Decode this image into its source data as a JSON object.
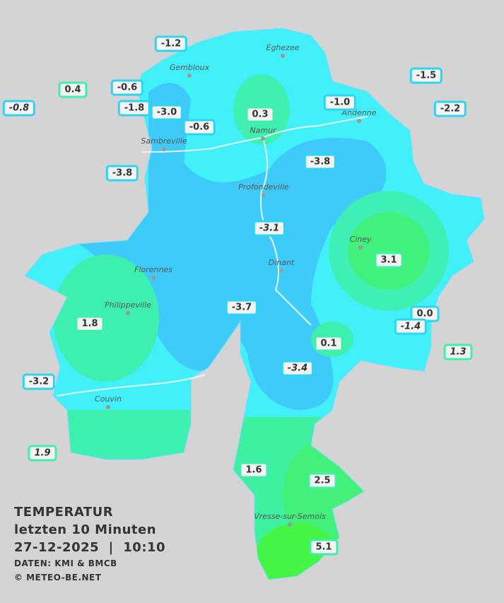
{
  "stations": [
    {
      "label": "-1.2",
      "style": "cyan"
    },
    {
      "label": "0.4",
      "style": "green"
    },
    {
      "label": "-0.6",
      "style": "cyan"
    },
    {
      "label": "-0.8",
      "style": "cyan italic"
    },
    {
      "label": "-1.8",
      "style": "cyan"
    },
    {
      "label": "-3.0",
      "style": "cyan"
    },
    {
      "label": "-0.6",
      "style": "cyan"
    },
    {
      "label": "0.3",
      "style": "green"
    },
    {
      "label": "-1.0",
      "style": "cyan"
    },
    {
      "label": "-1.5",
      "style": "cyan"
    },
    {
      "label": "-2.2",
      "style": "cyan"
    },
    {
      "label": "-3.8",
      "style": "cyan"
    },
    {
      "label": "-3.8",
      "style": "cyan"
    },
    {
      "label": "-3.1",
      "style": "cyan italic"
    },
    {
      "label": "3.1",
      "style": "green"
    },
    {
      "label": "-3.7",
      "style": "cyan"
    },
    {
      "label": "1.8",
      "style": "green"
    },
    {
      "label": "0.0",
      "style": "cyan"
    },
    {
      "label": "-1.4",
      "style": "cyan italic"
    },
    {
      "label": "1.3",
      "style": "green italic"
    },
    {
      "label": "0.1",
      "style": "green"
    },
    {
      "label": "-3.4",
      "style": "cyan italic"
    },
    {
      "label": "-3.2",
      "style": "cyan"
    },
    {
      "label": "1.9",
      "style": "green italic"
    },
    {
      "label": "1.6",
      "style": "green"
    },
    {
      "label": "2.5",
      "style": "green"
    },
    {
      "label": "5.1",
      "style": "green"
    }
  ],
  "towns": [
    "Eghezee",
    "Gembloux",
    "Andenne",
    "Namur",
    "Sambreville",
    "Profondeville",
    "Ciney",
    "Dinant",
    "Florennes",
    "Philippeville",
    "Couvin",
    "Vresse-sur-Semois"
  ],
  "legend": {
    "title": "TEMPERATUR",
    "subtitle": "letzten 10 Minuten",
    "datetime": "27-12-2025  |  10:10",
    "source": "DATEN: KMI & BMCB",
    "copyright": "© METEO-BE.NET"
  }
}
